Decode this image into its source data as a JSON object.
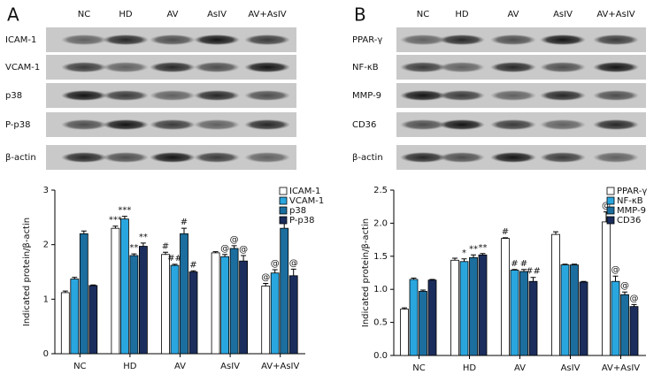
{
  "blots": [
    {
      "panel": "A",
      "lanes": [
        "NC",
        "HD",
        "AV",
        "AsIV",
        "AV+AsIV"
      ],
      "rows": [
        "ICAM-1",
        "VCAM-1",
        "p38",
        "P-p38",
        "β-actin"
      ]
    },
    {
      "panel": "B",
      "lanes": [
        "NC",
        "HD",
        "AV",
        "AsIV",
        "AV+AsIV"
      ],
      "rows": [
        "PPAR-γ",
        "NF-κB",
        "MMP-9",
        "CD36",
        "β-actin"
      ]
    }
  ],
  "chart_data": [
    {
      "type": "bar",
      "ylabel": "Indicated protein/β-actin",
      "categories": [
        "NC",
        "HD",
        "AV",
        "AsIV",
        "AV+AsIV"
      ],
      "ylim": [
        0,
        3
      ],
      "yticks": [
        0,
        1,
        2,
        3
      ],
      "legend": "upper right",
      "series": [
        {
          "name": "ICAM-1",
          "color": "#ffffff",
          "values": [
            1.12,
            2.3,
            1.82,
            1.85,
            1.24
          ],
          "errors": [
            0.03,
            0.04,
            0.04,
            0.02,
            0.05
          ],
          "markers": [
            null,
            "***",
            "#",
            null,
            "@"
          ]
        },
        {
          "name": "VCAM-1",
          "color": "#2aa6df",
          "values": [
            1.37,
            2.47,
            1.62,
            1.78,
            1.48
          ],
          "errors": [
            0.03,
            0.05,
            0.02,
            0.04,
            0.06
          ],
          "markers": [
            null,
            "***",
            "##",
            "@",
            "@"
          ]
        },
        {
          "name": "p38",
          "color": "#1b6e9e",
          "values": [
            2.2,
            1.8,
            2.2,
            1.93,
            2.3
          ],
          "errors": [
            0.05,
            0.03,
            0.1,
            0.05,
            0.1
          ],
          "markers": [
            null,
            "**",
            "#",
            "@",
            null
          ]
        },
        {
          "name": "P-p38",
          "color": "#1b2d5c",
          "values": [
            1.25,
            1.97,
            1.5,
            1.7,
            1.43
          ],
          "errors": [
            0.01,
            0.06,
            0.02,
            0.1,
            0.12
          ],
          "markers": [
            null,
            "**",
            "#",
            "@",
            "@"
          ]
        }
      ]
    },
    {
      "type": "bar",
      "ylabel": "Indicated protein/β-actin",
      "categories": [
        "NC",
        "HD",
        "AV",
        "AsIV",
        "AV+AsIV"
      ],
      "ylim": [
        0,
        2.5
      ],
      "yticks": [
        {
          "value": 0,
          "label": "0.0"
        },
        0.5,
        {
          "value": 1,
          "label": "1.0"
        },
        1.5,
        {
          "value": 2,
          "label": "2.0"
        },
        2.5
      ],
      "legend": "upper right",
      "series": [
        {
          "name": "PPAR-γ",
          "color": "#ffffff",
          "values": [
            0.7,
            1.44,
            1.77,
            1.83,
            2.02
          ],
          "errors": [
            0.02,
            0.03,
            0.01,
            0.04,
            0.15
          ],
          "markers": [
            null,
            null,
            "#",
            null,
            "@"
          ]
        },
        {
          "name": "NF-κB",
          "color": "#2aa6df",
          "values": [
            1.15,
            1.42,
            1.29,
            1.37,
            1.12
          ],
          "errors": [
            0.02,
            0.04,
            0.01,
            0.01,
            0.08
          ],
          "markers": [
            null,
            "*",
            "#",
            null,
            "@"
          ]
        },
        {
          "name": "MMP-9",
          "color": "#1b6e9e",
          "values": [
            0.97,
            1.48,
            1.27,
            1.37,
            0.92
          ],
          "errors": [
            0.02,
            0.04,
            0.03,
            0.01,
            0.04
          ],
          "markers": [
            null,
            "**",
            "#",
            null,
            "@"
          ]
        },
        {
          "name": "CD36",
          "color": "#1b2d5c",
          "values": [
            1.14,
            1.52,
            1.12,
            1.11,
            0.74
          ],
          "errors": [
            0.01,
            0.02,
            0.06,
            0.01,
            0.03
          ],
          "markers": [
            null,
            "**",
            "##",
            null,
            "@"
          ]
        }
      ]
    }
  ]
}
